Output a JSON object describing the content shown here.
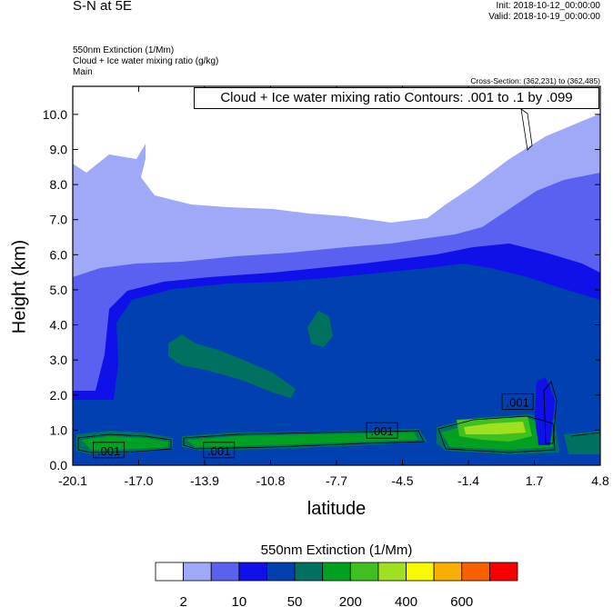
{
  "header": {
    "plot_title": "S-N at 5E",
    "init": "Init: 2018-10-12_00:00:00",
    "valid": "Valid: 2018-10-19_00:00:00",
    "field_lines": [
      "550nm Extinction   (1/Mm)",
      "Cloud + Ice water mixing ratio   (g/kg)",
      "Main"
    ],
    "cross_section": "Cross-Section: (362,231) to (362,485)",
    "contour_box": "Cloud + Ice water mixing ratio Contours: .001 to .1 by .099"
  },
  "chart_data": {
    "type": "heatmap",
    "xlabel": "latitude",
    "ylabel": "Height (km)",
    "x_ticks": [
      "-20.1",
      "-17.0",
      "-13.9",
      "-10.8",
      "-7.7",
      "-4.5",
      "-1.4",
      "1.7",
      "4.8"
    ],
    "y_ticks": [
      "0.0",
      "1.0",
      "2.0",
      "3.0",
      "4.0",
      "5.0",
      "6.0",
      "7.0",
      "8.0",
      "9.0",
      "10.0"
    ],
    "xlim": [
      -20.1,
      4.8
    ],
    "ylim": [
      0,
      10.8
    ],
    "contour_labels": [
      {
        "text": ".001",
        "x": -18.4,
        "y": 0.42
      },
      {
        "text": ".001",
        "x": -13.2,
        "y": 0.42
      },
      {
        "text": ".001",
        "x": -5.5,
        "y": 0.98
      },
      {
        "text": ".001",
        "x": 0.9,
        "y": 1.8
      }
    ],
    "colorbar": {
      "title": "550nm Extinction  (1/Mm)",
      "colors": [
        "#ffffff",
        "#a0a8f8",
        "#5a60f0",
        "#1010e8",
        "#0040b0",
        "#007060",
        "#00a020",
        "#40c020",
        "#a0e020",
        "#f8f800",
        "#f8b000",
        "#f86000",
        "#f80000"
      ],
      "labels": [
        "2",
        "10",
        "50",
        "200",
        "400",
        "600"
      ]
    }
  }
}
